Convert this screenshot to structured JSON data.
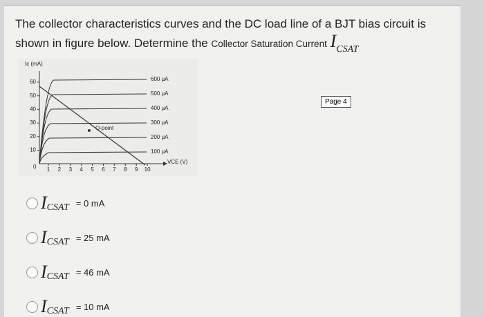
{
  "question": {
    "line1": "The collector characteristics curves and the DC load line of a BJT bias circuit is",
    "line2": "shown in figure below. Determine the",
    "line2_small": "Collector Saturation Current",
    "symbol": "I",
    "subscript": "CSAT"
  },
  "figure": {
    "y_axis_label": "Ic (mA)",
    "x_axis_label": "VCE (V)",
    "origin": "0",
    "yticks": [
      "60",
      "50",
      "40",
      "30",
      "20",
      "10"
    ],
    "xticks": [
      "1",
      "2",
      "3",
      "4",
      "5",
      "6",
      "7",
      "8",
      "9",
      "10"
    ],
    "curve_labels": [
      "600 µA",
      "500 µA",
      "400 µA",
      "300 µA",
      "200 µA",
      "100 µA"
    ],
    "q_point": "Q-point"
  },
  "page_label": "Page 4",
  "options": [
    {
      "symbol": "I",
      "subscript": "CSAT",
      "text": "= 0 mA"
    },
    {
      "symbol": "I",
      "subscript": "CSAT",
      "text": "= 25 mA"
    },
    {
      "symbol": "I",
      "subscript": "CSAT",
      "text": "= 46 mA"
    },
    {
      "symbol": "I",
      "subscript": "CSAT",
      "text": "= 10 mA"
    }
  ]
}
